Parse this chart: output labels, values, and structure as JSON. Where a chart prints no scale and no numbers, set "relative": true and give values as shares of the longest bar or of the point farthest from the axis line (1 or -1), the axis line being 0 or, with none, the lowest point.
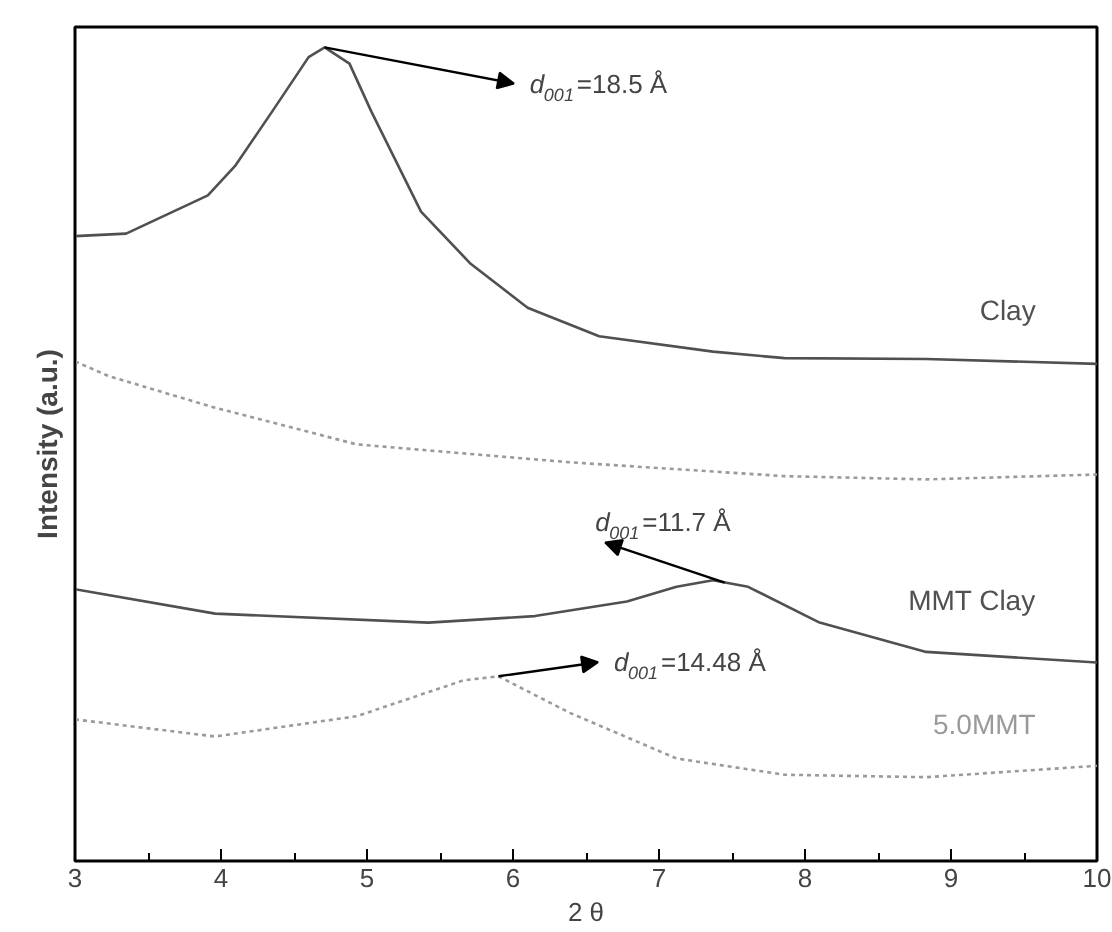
{
  "chart_data": {
    "type": "line",
    "relative": true,
    "xlabel": "2 θ",
    "ylabel": "Intensity (a.u.)",
    "xlim": [
      3,
      10
    ],
    "xticks": [
      3,
      4,
      5,
      6,
      7,
      8,
      9,
      10
    ],
    "grid": false,
    "marker": "none",
    "series": [
      {
        "name": "Clay",
        "color": "#505050",
        "line_style": "solid",
        "x": [
          3,
          3.35,
          3.91,
          4.1,
          4.35,
          4.6,
          4.71,
          4.88,
          5.03,
          5.37,
          5.71,
          6.1,
          6.59,
          7.37,
          7.86,
          8.83,
          10
        ],
        "values": [
          0.768,
          0.771,
          0.818,
          0.855,
          0.921,
          0.988,
          1.0,
          0.98,
          0.921,
          0.798,
          0.734,
          0.68,
          0.645,
          0.626,
          0.618,
          0.617,
          0.611
        ]
      },
      {
        "color": "#9a9a9a",
        "line_style": "dotted",
        "x": [
          3,
          3.23,
          3.96,
          4.93,
          6.39,
          7.86,
          8.83,
          10
        ],
        "values": [
          0.614,
          0.596,
          0.557,
          0.512,
          0.49,
          0.473,
          0.469,
          0.475
        ]
      },
      {
        "name": "MMT Clay",
        "color": "#505050",
        "line_style": "solid",
        "x": [
          3,
          3.96,
          5.42,
          6.15,
          6.78,
          7.12,
          7.37,
          7.61,
          8.1,
          8.83,
          10
        ],
        "values": [
          0.334,
          0.304,
          0.293,
          0.301,
          0.319,
          0.337,
          0.345,
          0.337,
          0.293,
          0.257,
          0.244
        ]
      },
      {
        "name": "5.0MMT",
        "color": "#9a9a9a",
        "line_style": "dotted",
        "x": [
          3,
          3.96,
          4.93,
          5.66,
          5.9,
          6.39,
          7.12,
          7.86,
          8.83,
          10
        ],
        "values": [
          0.174,
          0.153,
          0.178,
          0.222,
          0.227,
          0.182,
          0.126,
          0.106,
          0.103,
          0.117
        ]
      }
    ],
    "annotations": [
      {
        "text": "d$_{001}$=18.5 Å",
        "x": 4.71,
        "y": 1.0
      },
      {
        "text": "d$_{001}$=11.7 Å",
        "x": 7.45,
        "y": 0.342
      },
      {
        "text": "d$_{001}$=14.48 Å",
        "x": 5.9,
        "y": 0.227
      }
    ]
  }
}
